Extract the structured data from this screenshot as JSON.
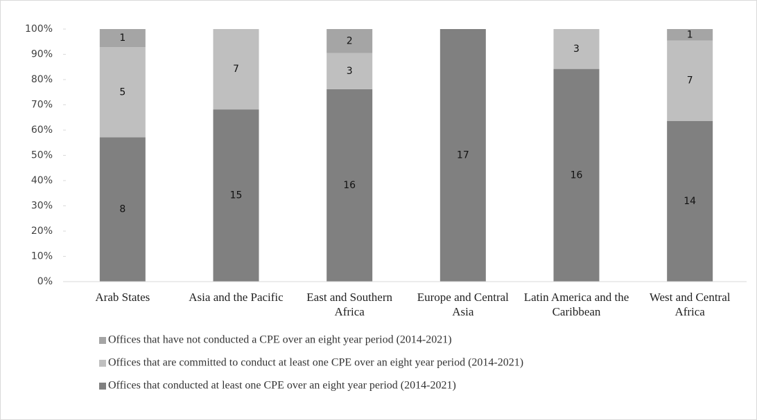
{
  "chart_data": {
    "type": "bar",
    "stacking": "percent",
    "categories": [
      "Arab States",
      "Asia and the Pacific",
      "East and Southern Africa",
      "Europe and Central Asia",
      "Latin America and the Caribbean",
      "West and Central Africa"
    ],
    "series": [
      {
        "name": "Offices that conducted at least one CPE over an eight year period  (2014-2021)",
        "color": "#808080",
        "values": [
          8,
          15,
          16,
          17,
          16,
          14
        ]
      },
      {
        "name": "Offices that are committed to conduct at least one CPE over an eight year period  (2014-2021)",
        "color": "#bfbfbf",
        "values": [
          5,
          7,
          3,
          null,
          3,
          7
        ]
      },
      {
        "name": "Offices that have not conducted a CPE  over an eight year period (2014-2021)",
        "color": "#a5a5a5",
        "values": [
          1,
          null,
          2,
          null,
          null,
          1
        ]
      }
    ],
    "ylim": [
      0,
      100
    ],
    "yticks": [
      {
        "value": 0,
        "label": "0%"
      },
      {
        "value": 10,
        "label": "10%"
      },
      {
        "value": 20,
        "label": "20%"
      },
      {
        "value": 30,
        "label": "30%"
      },
      {
        "value": 40,
        "label": "40%"
      },
      {
        "value": 50,
        "label": "50%"
      },
      {
        "value": 60,
        "label": "60%"
      },
      {
        "value": 70,
        "label": "70%"
      },
      {
        "value": 80,
        "label": "80%"
      },
      {
        "value": 90,
        "label": "90%"
      },
      {
        "value": 100,
        "label": "100%"
      }
    ],
    "grid": false,
    "legend": "bottom"
  }
}
